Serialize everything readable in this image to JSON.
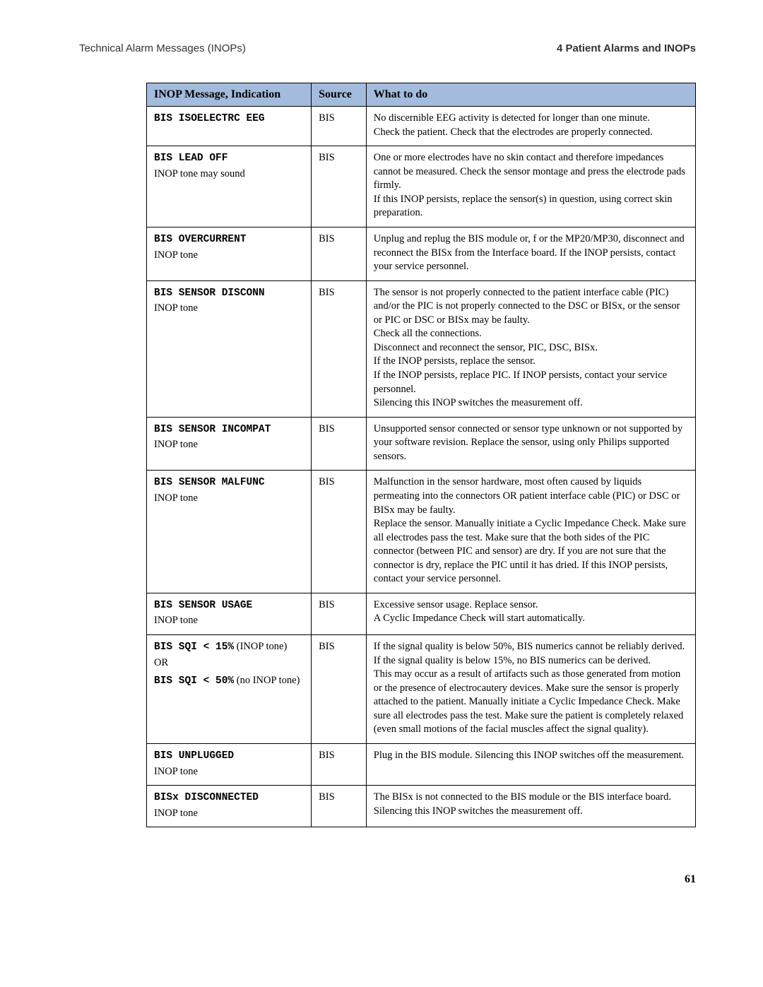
{
  "header": {
    "left": "Technical Alarm Messages (INOPs)",
    "right": "4  Patient Alarms and INOPs"
  },
  "table": {
    "columns": [
      "INOP Message, Indication",
      "Source",
      "What to do"
    ],
    "header_bg": "#a3bbdc",
    "border_color": "#000000",
    "rows": [
      {
        "msg_code": "BIS ISOELECTRC EEG",
        "src": "BIS",
        "action": "No discernible EEG activity is detected for longer than one minute.\nCheck the patient. Check that the electrodes are properly connected."
      },
      {
        "msg_code": "BIS LEAD OFF",
        "msg_sub": "INOP tone may sound",
        "src": "BIS",
        "action": "One or more electrodes have no skin contact and therefore impedances cannot be measured. Check the sensor montage and press the electrode pads firmly.\nIf this INOP persists, replace the sensor(s) in question, using correct skin preparation."
      },
      {
        "msg_code": "BIS OVERCURRENT",
        "msg_sub": "INOP tone",
        "src": "BIS",
        "action": "Unplug and replug the BIS module or, f or the MP20/MP30, disconnect and reconnect the BISx from the Interface board. If the INOP persists, contact your service personnel."
      },
      {
        "msg_code": "BIS SENSOR DISCONN",
        "msg_sub": "INOP tone",
        "src": "BIS",
        "action": "The sensor is not properly connected to the patient interface cable (PIC) and/or the PIC is not properly connected to the DSC or BISx, or the sensor or PIC or DSC or BISx may be faulty.\nCheck all the connections.\nDisconnect and reconnect the sensor, PIC, DSC, BISx.\nIf the INOP persists, replace the sensor.\nIf the INOP persists, replace PIC. If INOP persists, contact your service personnel.\nSilencing this INOP switches the measurement off."
      },
      {
        "msg_code": "BIS SENSOR INCOMPAT",
        "msg_sub": "INOP tone",
        "src": "BIS",
        "action": "Unsupported sensor connected or sensor type unknown or not supported by your software revision. Replace the sensor, using only Philips supported sensors."
      },
      {
        "msg_code": "BIS SENSOR MALFUNC",
        "msg_sub": "INOP tone",
        "src": "BIS",
        "action": "Malfunction in the sensor hardware, most often caused by liquids permeating into the connectors OR patient interface cable (PIC) or DSC or BISx may be faulty.\nReplace the sensor. Manually initiate a Cyclic Impedance Check. Make sure all electrodes pass the test. Make sure that the both sides of the PIC connector (between PIC and sensor) are dry. If you are not sure that the connector is dry, replace the PIC until it has dried. If this INOP persists, contact your service personnel."
      },
      {
        "msg_code": "BIS SENSOR USAGE",
        "msg_sub": "INOP tone",
        "src": "BIS",
        "action": "Excessive sensor usage. Replace sensor.\nA Cyclic Impedance Check will start automatically."
      },
      {
        "sqi_code1": "BIS SQI < 15%",
        "sqi_note1": " (INOP tone)",
        "sqi_or": "OR",
        "sqi_code2": "BIS SQI < 50%",
        "sqi_note2": " (no INOP tone)",
        "src": "BIS",
        "action": "If the signal quality is below 50%, BIS numerics cannot be reliably derived.\nIf the signal quality is below 15%, no BIS numerics can be derived.\nThis may occur as a result of artifacts such as those generated from motion or the presence of electrocautery devices. Make sure the sensor is properly attached to the patient. Manually initiate a Cyclic Impedance Check. Make sure all electrodes pass the test. Make sure the patient is completely relaxed (even small motions of the facial muscles affect the signal quality)."
      },
      {
        "msg_code": "BIS UNPLUGGED",
        "msg_sub": "INOP tone",
        "src": "BIS",
        "action": "Plug in the BIS module. Silencing this INOP switches off the measurement."
      },
      {
        "msg_code": "BISx DISCONNECTED",
        "msg_sub": "INOP tone",
        "src": "BIS",
        "action": "The BISx is not connected to the BIS module or the BIS interface board. Silencing this INOP switches the measurement off."
      }
    ]
  },
  "page_number": "61"
}
